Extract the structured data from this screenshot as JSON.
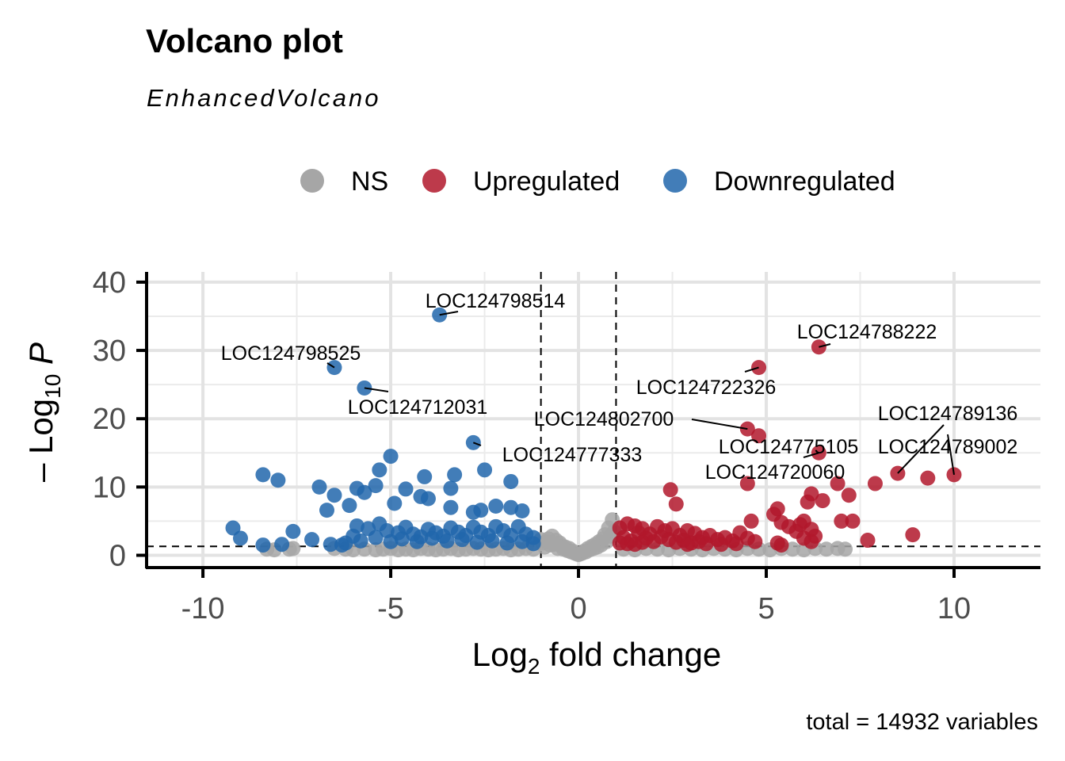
{
  "chart_data": {
    "type": "scatter",
    "title": "Volcano plot",
    "subtitle": "EnhancedVolcano",
    "xlabel": "Log2 fold change",
    "ylabel": "-Log10 P",
    "xlim": [
      -11.5,
      12.3
    ],
    "ylim": [
      -1.8,
      41.5
    ],
    "x_ticks": [
      -10,
      -5,
      0,
      5,
      10
    ],
    "x_tick_labels": [
      "-10",
      "-5",
      "0",
      "5",
      "10"
    ],
    "y_ticks": [
      0,
      10,
      20,
      30,
      40
    ],
    "y_tick_labels": [
      "0",
      "10",
      "20",
      "30",
      "40"
    ],
    "thresholds": {
      "log2fc": [
        -1,
        1
      ],
      "neg_log10_p": 1.3
    },
    "grid": true,
    "legend_position": "top",
    "caption": "total = 14932 variables",
    "colors": {
      "NS": "#a6a6a6",
      "Upregulated": "#b2182b",
      "Downregulated": "#2166ac"
    },
    "series": [
      {
        "name": "NS",
        "points": [
          [
            -8.3,
            0.9
          ],
          [
            -8.1,
            0.8
          ],
          [
            -7.7,
            0.9
          ],
          [
            -7.6,
            1.0
          ],
          [
            -6.5,
            1.0
          ],
          [
            -6.2,
            0.9
          ],
          [
            -6.0,
            0.8
          ],
          [
            -5.7,
            0.9
          ],
          [
            -5.4,
            0.8
          ],
          [
            -5.2,
            0.9
          ],
          [
            -5.0,
            1.0
          ],
          [
            -4.8,
            0.8
          ],
          [
            -4.6,
            0.9
          ],
          [
            -4.4,
            0.8
          ],
          [
            -4.2,
            1.0
          ],
          [
            -4.0,
            0.9
          ],
          [
            -3.8,
            0.8
          ],
          [
            -3.6,
            0.9
          ],
          [
            -3.4,
            1.0
          ],
          [
            -3.2,
            0.8
          ],
          [
            -3.0,
            0.9
          ],
          [
            -2.8,
            1.0
          ],
          [
            -2.6,
            0.9
          ],
          [
            -2.4,
            0.8
          ],
          [
            -2.2,
            0.9
          ],
          [
            -2.0,
            1.0
          ],
          [
            -1.8,
            0.8
          ],
          [
            -1.6,
            0.9
          ],
          [
            -1.4,
            1.0
          ],
          [
            -1.2,
            0.9
          ],
          [
            -1.0,
            2.3
          ],
          [
            -0.95,
            1.8
          ],
          [
            -0.9,
            1.2
          ],
          [
            -0.85,
            2.0
          ],
          [
            -0.8,
            2.4
          ],
          [
            -0.75,
            1.5
          ],
          [
            -0.7,
            2.8
          ],
          [
            -0.65,
            1.6
          ],
          [
            -0.6,
            2.2
          ],
          [
            -0.55,
            1.0
          ],
          [
            -0.5,
            1.8
          ],
          [
            -0.45,
            1.4
          ],
          [
            -0.4,
            0.9
          ],
          [
            -0.35,
            1.2
          ],
          [
            -0.3,
            0.7
          ],
          [
            -0.25,
            1.0
          ],
          [
            -0.2,
            0.5
          ],
          [
            -0.15,
            0.6
          ],
          [
            -0.1,
            0.3
          ],
          [
            -0.05,
            0.2
          ],
          [
            0.0,
            0.1
          ],
          [
            0.05,
            0.2
          ],
          [
            0.1,
            0.3
          ],
          [
            0.15,
            0.6
          ],
          [
            0.2,
            0.5
          ],
          [
            0.25,
            1.0
          ],
          [
            0.3,
            0.8
          ],
          [
            0.35,
            1.3
          ],
          [
            0.4,
            1.0
          ],
          [
            0.45,
            1.6
          ],
          [
            0.5,
            1.2
          ],
          [
            0.55,
            2.0
          ],
          [
            0.6,
            1.5
          ],
          [
            0.65,
            2.4
          ],
          [
            0.7,
            3.0
          ],
          [
            0.75,
            2.0
          ],
          [
            0.8,
            4.0
          ],
          [
            0.85,
            2.8
          ],
          [
            0.9,
            5.2
          ],
          [
            0.95,
            3.5
          ],
          [
            1.2,
            0.9
          ],
          [
            1.5,
            0.8
          ],
          [
            1.8,
            1.0
          ],
          [
            2.1,
            0.9
          ],
          [
            2.4,
            0.8
          ],
          [
            2.7,
            1.0
          ],
          [
            3.0,
            0.9
          ],
          [
            3.3,
            0.8
          ],
          [
            3.6,
            1.0
          ],
          [
            3.9,
            0.9
          ],
          [
            4.2,
            0.8
          ],
          [
            4.5,
            1.0
          ],
          [
            4.8,
            0.9
          ],
          [
            5.1,
            0.8
          ],
          [
            5.4,
            1.0
          ],
          [
            5.7,
            0.9
          ],
          [
            6.0,
            0.8
          ],
          [
            6.3,
            1.0
          ],
          [
            6.6,
            0.9
          ],
          [
            6.9,
            1.0
          ],
          [
            7.1,
            0.9
          ]
        ]
      },
      {
        "name": "Upregulated",
        "points": [
          [
            6.4,
            30.5
          ],
          [
            4.8,
            27.5
          ],
          [
            4.5,
            18.5
          ],
          [
            4.8,
            17.5
          ],
          [
            6.4,
            15.0
          ],
          [
            10.0,
            11.8
          ],
          [
            8.5,
            12.0
          ],
          [
            9.3,
            11.3
          ],
          [
            4.5,
            10.5
          ],
          [
            7.9,
            10.5
          ],
          [
            2.45,
            9.6
          ],
          [
            6.9,
            10.5
          ],
          [
            6.2,
            9.0
          ],
          [
            6.5,
            8.0
          ],
          [
            7.2,
            8.8
          ],
          [
            2.6,
            7.5
          ],
          [
            6.1,
            7.8
          ],
          [
            5.3,
            6.8
          ],
          [
            5.2,
            6.0
          ],
          [
            7.0,
            5.0
          ],
          [
            7.3,
            5.0
          ],
          [
            4.6,
            5.0
          ],
          [
            5.4,
            4.8
          ],
          [
            6.0,
            5.0
          ],
          [
            5.9,
            4.5
          ],
          [
            6.2,
            3.8
          ],
          [
            5.6,
            4.2
          ],
          [
            5.8,
            3.5
          ],
          [
            6.0,
            2.5
          ],
          [
            6.3,
            2.8
          ],
          [
            6.2,
            2.0
          ],
          [
            7.7,
            2.2
          ],
          [
            8.9,
            3.0
          ],
          [
            5.3,
            1.8
          ],
          [
            5.4,
            1.5
          ],
          [
            1.1,
            4.0
          ],
          [
            1.3,
            4.6
          ],
          [
            1.5,
            4.3
          ],
          [
            1.7,
            3.9
          ],
          [
            1.9,
            3.1
          ],
          [
            2.1,
            4.2
          ],
          [
            2.3,
            3.6
          ],
          [
            2.5,
            3.9
          ],
          [
            2.7,
            2.9
          ],
          [
            2.9,
            3.6
          ],
          [
            3.1,
            3.2
          ],
          [
            3.3,
            2.6
          ],
          [
            3.5,
            2.9
          ],
          [
            3.7,
            2.3
          ],
          [
            3.9,
            2.6
          ],
          [
            4.1,
            2.1
          ],
          [
            4.3,
            3.3
          ],
          [
            4.5,
            2.5
          ],
          [
            4.7,
            2.0
          ],
          [
            1.2,
            2.6
          ],
          [
            1.4,
            2.1
          ],
          [
            1.6,
            3.3
          ],
          [
            1.8,
            2.5
          ],
          [
            2.0,
            2.0
          ],
          [
            2.2,
            2.7
          ],
          [
            2.4,
            2.3
          ],
          [
            2.6,
            1.9
          ],
          [
            2.8,
            2.2
          ],
          [
            3.0,
            1.8
          ],
          [
            3.2,
            2.0
          ],
          [
            1.1,
            1.8
          ],
          [
            1.3,
            1.7
          ],
          [
            1.5,
            1.6
          ],
          [
            1.7,
            1.9
          ],
          [
            2.9,
            1.6
          ],
          [
            3.4,
            1.7
          ],
          [
            3.8,
            1.6
          ],
          [
            4.2,
            1.7
          ]
        ]
      },
      {
        "name": "Downregulated",
        "points": [
          [
            -3.7,
            35.2
          ],
          [
            -6.5,
            27.5
          ],
          [
            -5.7,
            24.5
          ],
          [
            -2.8,
            16.5
          ],
          [
            -5.0,
            14.5
          ],
          [
            -5.3,
            12.5
          ],
          [
            -8.4,
            11.8
          ],
          [
            -8.0,
            11.0
          ],
          [
            -3.3,
            11.8
          ],
          [
            -2.5,
            12.5
          ],
          [
            -4.1,
            11.5
          ],
          [
            -1.8,
            10.8
          ],
          [
            -6.9,
            10.0
          ],
          [
            -5.9,
            9.8
          ],
          [
            -5.4,
            10.2
          ],
          [
            -4.6,
            9.7
          ],
          [
            -3.4,
            9.8
          ],
          [
            -6.5,
            8.8
          ],
          [
            -5.7,
            9.2
          ],
          [
            -4.2,
            8.6
          ],
          [
            -4.0,
            8.3
          ],
          [
            -6.1,
            7.3
          ],
          [
            -4.9,
            7.6
          ],
          [
            -6.7,
            6.6
          ],
          [
            -3.4,
            7.0
          ],
          [
            -2.8,
            6.3
          ],
          [
            -2.2,
            7.2
          ],
          [
            -2.6,
            6.6
          ],
          [
            -1.8,
            7.0
          ],
          [
            -1.5,
            6.5
          ],
          [
            -9.2,
            4.0
          ],
          [
            -9.0,
            2.5
          ],
          [
            -8.4,
            1.5
          ],
          [
            -7.6,
            3.5
          ],
          [
            -7.9,
            1.6
          ],
          [
            -7.1,
            2.3
          ],
          [
            -6.3,
            1.5
          ],
          [
            -6.0,
            2.8
          ],
          [
            -5.9,
            4.3
          ],
          [
            -5.6,
            3.9
          ],
          [
            -5.3,
            4.6
          ],
          [
            -5.1,
            3.6
          ],
          [
            -4.8,
            3.3
          ],
          [
            -4.6,
            4.1
          ],
          [
            -4.4,
            3.1
          ],
          [
            -4.2,
            2.7
          ],
          [
            -4.0,
            3.8
          ],
          [
            -3.8,
            3.3
          ],
          [
            -3.6,
            2.8
          ],
          [
            -3.4,
            4.0
          ],
          [
            -3.2,
            3.4
          ],
          [
            -3.0,
            2.9
          ],
          [
            -2.8,
            4.1
          ],
          [
            -2.6,
            3.4
          ],
          [
            -2.4,
            2.9
          ],
          [
            -2.2,
            4.2
          ],
          [
            -2.0,
            3.6
          ],
          [
            -1.8,
            2.9
          ],
          [
            -1.6,
            4.2
          ],
          [
            -1.4,
            3.1
          ],
          [
            -1.2,
            2.6
          ],
          [
            -5.8,
            2.1
          ],
          [
            -5.4,
            2.6
          ],
          [
            -5.0,
            2.0
          ],
          [
            -4.7,
            2.4
          ],
          [
            -4.3,
            2.0
          ],
          [
            -3.9,
            2.5
          ],
          [
            -3.5,
            2.1
          ],
          [
            -3.1,
            2.3
          ],
          [
            -2.7,
            1.9
          ],
          [
            -2.3,
            2.1
          ],
          [
            -1.9,
            1.8
          ],
          [
            -1.5,
            2.0
          ],
          [
            -1.2,
            1.7
          ],
          [
            -6.6,
            1.6
          ],
          [
            -6.2,
            1.8
          ]
        ]
      }
    ],
    "labels": [
      {
        "text": "LOC124798514",
        "x": -3.7,
        "y": 35.2
      },
      {
        "text": "LOC124798525",
        "x": -6.5,
        "y": 27.5
      },
      {
        "text": "LOC124712031",
        "x": -5.7,
        "y": 24.5
      },
      {
        "text": "LOC124777333",
        "x": -2.8,
        "y": 16.5
      },
      {
        "text": "LOC124788222",
        "x": 6.4,
        "y": 30.5
      },
      {
        "text": "LOC124722326",
        "x": 4.8,
        "y": 27.5
      },
      {
        "text": "LOC124802700",
        "x": 4.5,
        "y": 18.5
      },
      {
        "text": "LOC124775105",
        "x": 6.4,
        "y": 15.0
      },
      {
        "text": "LOC124720060",
        "x": 6.2,
        "y": 14.0
      },
      {
        "text": "LOC124789136",
        "x": 8.5,
        "y": 12.0
      },
      {
        "text": "LOC124789002",
        "x": 10.0,
        "y": 11.8
      }
    ]
  }
}
